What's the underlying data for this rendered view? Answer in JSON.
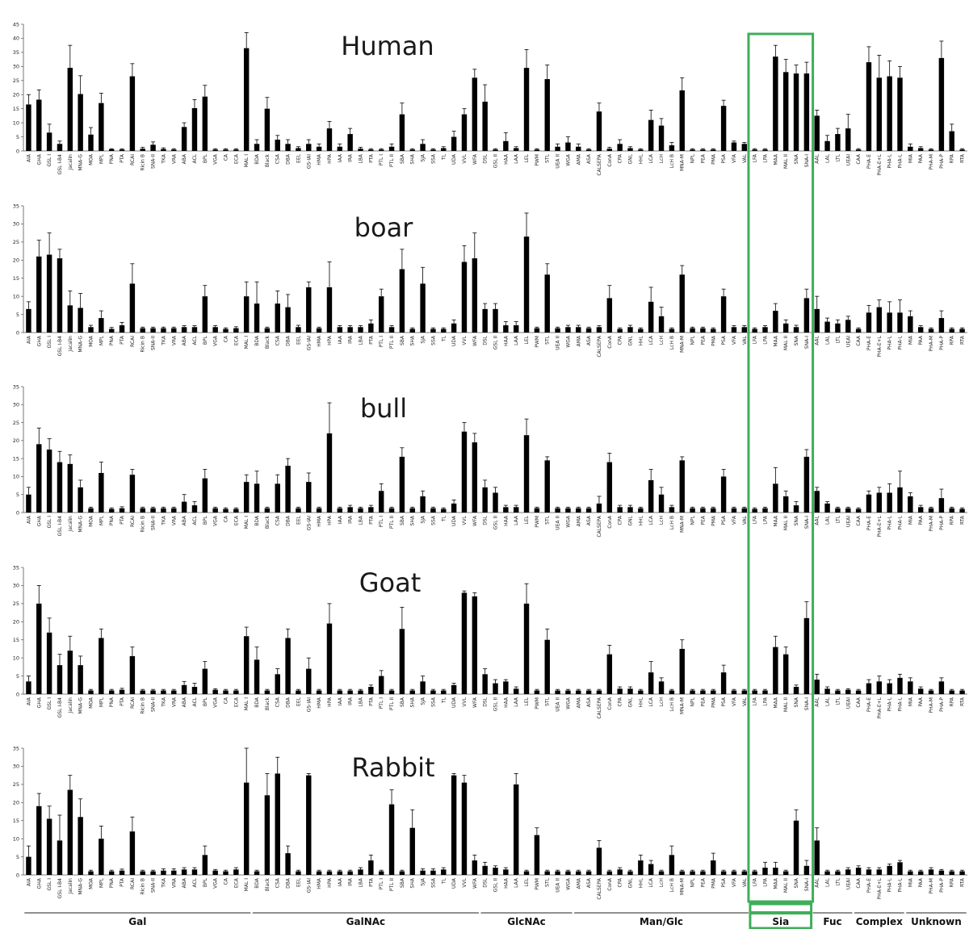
{
  "chart_data": {
    "type": "bar",
    "ylim": [
      0,
      45
    ],
    "accent_color": "#3fae5a",
    "bar_color": "#000000",
    "highlight_group": "Sia",
    "lectins": [
      "AIA",
      "GHA",
      "GSL I",
      "GSL I-B4",
      "Jacalin",
      "MNA-G",
      "MOA",
      "MPL",
      "PNA",
      "PTA",
      "RCAI",
      "Ricin B",
      "SNA-II",
      "TKA",
      "VRA",
      "ABA",
      "ACL",
      "BPL",
      "VGA",
      "CA",
      "ECA",
      "MAL I",
      "BDA",
      "Black",
      "CSA",
      "DBA",
      "EEL",
      "GS-IAI",
      "HMA",
      "HPA",
      "IAA",
      "IRA",
      "LBA",
      "PTA",
      "PTL I",
      "PTL II",
      "SBA",
      "SHA",
      "SJA",
      "SSA",
      "TL",
      "UDA",
      "VVL",
      "WFA",
      "DSL",
      "GSL II",
      "HAA",
      "LAA",
      "LEL",
      "PWM",
      "STL",
      "UEA II",
      "WGA",
      "AMA",
      "ASA",
      "CALSEPA",
      "ConA",
      "CPA",
      "GNL",
      "HHL",
      "LCA",
      "LcH",
      "LcH B",
      "MNA-M",
      "NPL",
      "PEA",
      "PMA",
      "PSA",
      "VFA",
      "VAL",
      "LFA",
      "LPA",
      "MAA",
      "MAL II",
      "SNA",
      "SNA-I",
      "AAL",
      "LAL",
      "LTL",
      "UEAI",
      "CAA",
      "PHA-E",
      "PHA-E+L",
      "PHA-L",
      "PHA-L",
      "MIA",
      "PAA",
      "PHA-M",
      "PHA-P",
      "RPA",
      "RTA"
    ],
    "groups": [
      {
        "name": "Gal",
        "start": 0,
        "end": 21
      },
      {
        "name": "GalNAc",
        "start": 22,
        "end": 43
      },
      {
        "name": "GlcNAc",
        "start": 44,
        "end": 52
      },
      {
        "name": "Man/Glc",
        "start": 53,
        "end": 69
      },
      {
        "name": "Sia",
        "start": 70,
        "end": 75
      },
      {
        "name": "Fuc",
        "start": 76,
        "end": 79
      },
      {
        "name": "Complex",
        "start": 80,
        "end": 84
      },
      {
        "name": "Unknown",
        "start": 85,
        "end": 90
      }
    ],
    "panels": [
      {
        "title": "Human",
        "ylim": [
          0,
          45
        ],
        "yticks": [
          0,
          5,
          10,
          15,
          20,
          25,
          30,
          35,
          40,
          45
        ],
        "values": [
          16.5,
          18.2,
          6.5,
          2.5,
          29.5,
          20.2,
          5.8,
          17,
          0.6,
          0.5,
          26.5,
          0.8,
          2.2,
          0.7,
          0.5,
          8.5,
          15.2,
          19.3,
          0.5,
          0.5,
          0.5,
          36.5,
          2.5,
          15,
          4,
          2.5,
          1,
          2.5,
          1.5,
          8,
          1.5,
          6,
          0.8,
          0.5,
          0.5,
          1.5,
          13,
          0.5,
          2.5,
          0.5,
          1,
          5,
          13,
          26,
          17.5,
          0.5,
          3.5,
          1,
          29.5,
          0.5,
          25.5,
          1.5,
          3,
          1.5,
          0.5,
          14,
          0.8,
          2.5,
          1,
          0.5,
          11,
          9,
          2,
          21.5,
          0.5,
          0.5,
          0.5,
          16,
          3,
          2.5,
          0.5,
          0.5,
          33.5,
          28,
          27.5,
          27.5,
          12.5,
          3.5,
          6,
          8,
          0.5,
          31.5,
          26,
          26.5,
          26,
          1.5,
          1,
          0.5,
          33,
          7,
          0.5
        ],
        "errors": [
          3.5,
          3.5,
          3,
          1,
          8,
          6.5,
          2.5,
          3.5,
          0.2,
          0.2,
          4.5,
          0.5,
          1,
          0.4,
          0.3,
          1.5,
          3,
          4,
          0.3,
          0.3,
          0.3,
          5.5,
          1.5,
          4,
          1.5,
          1.5,
          0.5,
          1.5,
          1,
          2.5,
          1,
          2,
          0.5,
          0.3,
          0.3,
          1,
          4,
          0.3,
          1.5,
          0.3,
          0.5,
          2,
          2,
          3,
          6,
          0.3,
          3,
          0.5,
          6.5,
          0.3,
          5,
          1,
          2,
          1,
          0.3,
          3,
          0.5,
          1.5,
          0.5,
          0.3,
          3.5,
          2.5,
          1,
          4.5,
          0.3,
          0.3,
          0.3,
          2,
          0.5,
          0.5,
          0.3,
          0.3,
          4,
          4.5,
          3,
          4,
          2,
          2,
          2,
          5,
          0.3,
          5.5,
          8,
          5.5,
          4,
          1,
          0.5,
          0.3,
          6,
          2.5,
          0.3
        ]
      },
      {
        "title": "boar",
        "ylim": [
          0,
          35
        ],
        "yticks": [
          0,
          5,
          10,
          15,
          20,
          25,
          30,
          35
        ],
        "values": [
          6.5,
          21,
          21.5,
          20.5,
          7.5,
          6.8,
          1.5,
          4,
          1,
          2,
          13.5,
          1.2,
          1.2,
          1.2,
          1.2,
          1.5,
          1.5,
          10,
          1.5,
          1,
          1.2,
          10,
          8,
          1.2,
          8,
          7,
          1.5,
          12.5,
          1.2,
          12.5,
          1.5,
          1.5,
          1.5,
          2.5,
          10,
          1.5,
          17.5,
          1,
          13.5,
          1,
          1,
          2.5,
          19.5,
          20.5,
          6.5,
          6.5,
          2,
          2,
          26.5,
          1.2,
          16,
          1.2,
          1.5,
          1.5,
          1.2,
          1.5,
          9.5,
          1,
          1.5,
          1,
          8.5,
          4.5,
          1,
          16,
          1.2,
          1.2,
          1,
          10,
          1.5,
          1.5,
          1,
          1.5,
          6,
          2.5,
          1.5,
          9.5,
          6.5,
          3,
          2.5,
          3.5,
          1,
          5.5,
          7,
          5.5,
          5.5,
          4.5,
          1.5,
          1,
          4,
          1,
          1
        ],
        "errors": [
          2,
          4.5,
          6,
          2.5,
          4,
          4,
          0.5,
          2,
          0.4,
          0.8,
          5.5,
          0.3,
          0.3,
          0.3,
          0.3,
          0.4,
          0.4,
          3,
          0.4,
          0.3,
          0.4,
          4,
          6,
          0.3,
          3.5,
          3.5,
          0.5,
          1.5,
          0.3,
          7,
          0.4,
          0.4,
          0.4,
          1,
          2,
          0.4,
          5.5,
          0.3,
          4.5,
          0.3,
          0.3,
          1,
          4.5,
          7,
          1.5,
          1.5,
          1,
          1,
          6.5,
          0.3,
          3,
          0.3,
          0.5,
          0.5,
          0.3,
          0.4,
          3.5,
          0.3,
          0.5,
          0.3,
          4,
          2.5,
          0.3,
          2.5,
          0.3,
          0.3,
          0.3,
          2,
          0.4,
          0.4,
          0.3,
          0.4,
          2,
          1,
          0.5,
          2.5,
          3.5,
          1,
          1,
          1,
          0.3,
          2,
          2,
          3,
          3.5,
          1.5,
          0.4,
          0.3,
          2,
          0.3,
          0.3
        ]
      },
      {
        "title": "bull",
        "ylim": [
          0,
          35
        ],
        "yticks": [
          0,
          5,
          10,
          15,
          20,
          25,
          30,
          35
        ],
        "values": [
          5,
          19,
          17.5,
          14,
          13.5,
          7,
          1.2,
          11,
          1,
          1.2,
          10.5,
          1.2,
          1.2,
          1.2,
          1.2,
          3,
          2,
          9.5,
          1.2,
          1,
          1,
          8.5,
          8,
          1.2,
          8,
          13,
          1.2,
          8.5,
          1.2,
          22,
          1.2,
          1.5,
          1.2,
          1.5,
          6,
          1.2,
          15.5,
          1.2,
          4.5,
          1.2,
          1,
          2.5,
          22.5,
          19.5,
          7,
          5.5,
          1.5,
          1.5,
          21.5,
          1.2,
          14.5,
          1.2,
          1.2,
          1.2,
          1.2,
          2.5,
          14,
          1.5,
          1.5,
          1.2,
          9,
          5,
          1.5,
          14.5,
          1.2,
          1.2,
          1.2,
          10,
          1.2,
          1.2,
          1,
          1.2,
          8,
          4.5,
          2,
          15.5,
          6,
          2.5,
          1.2,
          1.2,
          1,
          5,
          5.5,
          5.5,
          7,
          4.5,
          1.5,
          1.2,
          4,
          1.2,
          1
        ],
        "errors": [
          2,
          4.5,
          3,
          3,
          2.5,
          2,
          0.3,
          3,
          0.3,
          0.4,
          1.5,
          0.3,
          0.3,
          0.3,
          0.3,
          2,
          1,
          2.5,
          0.3,
          0.3,
          0.3,
          2,
          3.5,
          0.3,
          2.5,
          2,
          0.3,
          2.5,
          0.3,
          8.5,
          0.3,
          0.5,
          0.3,
          0.5,
          2,
          0.3,
          2.5,
          0.3,
          1.5,
          0.3,
          0.3,
          1,
          2.5,
          2.5,
          2,
          1.5,
          0.5,
          0.5,
          4.5,
          0.3,
          1,
          0.3,
          0.3,
          0.3,
          0.3,
          2,
          2.5,
          0.5,
          0.5,
          0.3,
          3,
          2,
          0.5,
          1,
          0.3,
          0.3,
          0.3,
          2,
          0.3,
          0.3,
          0.3,
          0.3,
          4.5,
          1.5,
          1,
          2,
          1,
          0.5,
          0.3,
          0.3,
          0.3,
          1,
          1.5,
          2.5,
          4.5,
          1,
          0.5,
          0.3,
          2.5,
          0.3,
          0.3
        ]
      },
      {
        "title": "Goat",
        "ylim": [
          0,
          35
        ],
        "yticks": [
          0,
          5,
          10,
          15,
          20,
          25,
          30,
          35
        ],
        "values": [
          3.5,
          25,
          17,
          8,
          12,
          8,
          1,
          15.5,
          1,
          1.2,
          10.5,
          1,
          1,
          1,
          1,
          2.5,
          2,
          7,
          1.2,
          1,
          1,
          16,
          9.5,
          1,
          5.5,
          15.5,
          1,
          7,
          1,
          19.5,
          1,
          1,
          1,
          2,
          5,
          1,
          18,
          1,
          3.5,
          1,
          1,
          2.5,
          28,
          27,
          5.5,
          3,
          3.5,
          1.5,
          25,
          1,
          15,
          1,
          1,
          1,
          1,
          1,
          11,
          1.5,
          1.5,
          1,
          6,
          3.5,
          1,
          12.5,
          1,
          1,
          1,
          6,
          1,
          1,
          1,
          1,
          13,
          11,
          2,
          21,
          4,
          1.5,
          1,
          1.2,
          1,
          3,
          3.5,
          3,
          4.5,
          3.5,
          1.5,
          1,
          3.5,
          1,
          1
        ],
        "errors": [
          1.5,
          5,
          4,
          3,
          4,
          2.5,
          0.3,
          2.5,
          0.3,
          0.4,
          2.5,
          0.3,
          0.3,
          0.3,
          0.3,
          1,
          1,
          2,
          0.3,
          0.3,
          0.3,
          2.5,
          3.5,
          0.3,
          1.5,
          2.5,
          0.3,
          3,
          0.3,
          5.5,
          0.3,
          0.3,
          0.3,
          0.5,
          1.5,
          0.3,
          6,
          0.3,
          1.5,
          0.3,
          0.3,
          0.5,
          0.5,
          1,
          1.5,
          1,
          0.5,
          0.5,
          5.5,
          0.3,
          3,
          0.3,
          0.3,
          0.3,
          0.3,
          0.3,
          2.5,
          0.5,
          0.5,
          0.3,
          3,
          1,
          0.3,
          2.5,
          0.3,
          0.3,
          0.3,
          2,
          0.3,
          0.3,
          0.3,
          0.3,
          3,
          2,
          0.5,
          4.5,
          1.5,
          0.5,
          0.3,
          0.3,
          0.3,
          1,
          1.5,
          1,
          1,
          1,
          0.5,
          0.3,
          1,
          0.3,
          0.3
        ]
      },
      {
        "title": "Rabbit",
        "ylim": [
          0,
          35
        ],
        "yticks": [
          0,
          5,
          10,
          15,
          20,
          25,
          30,
          35
        ],
        "values": [
          5,
          19,
          15.5,
          9.5,
          23.5,
          16,
          1,
          10,
          1,
          1.2,
          12,
          1,
          1,
          1.2,
          1.2,
          1.5,
          1.5,
          5.5,
          1.2,
          1,
          1.5,
          25.5,
          1,
          22,
          28,
          6,
          1,
          27.5,
          1,
          1,
          1,
          1,
          1.5,
          4,
          1,
          19.5,
          1,
          13,
          1.2,
          1.2,
          1.5,
          27.5,
          25.5,
          4,
          2.5,
          2,
          1.5,
          25,
          1,
          11,
          1,
          1,
          1,
          1,
          1,
          7.5,
          1,
          1.5,
          1,
          4,
          3,
          1,
          5.5,
          1,
          1,
          1,
          4,
          1,
          1,
          1,
          1,
          2,
          2,
          1,
          15,
          2.5,
          9.5,
          1,
          1,
          1.5,
          2,
          1.5,
          1.5,
          2.5,
          3.5,
          1,
          1,
          1.5,
          1.2,
          1,
          1
        ],
        "errors": [
          3,
          3.5,
          3.5,
          7,
          4,
          5,
          0.3,
          3.5,
          0.3,
          0.4,
          4,
          0.3,
          0.3,
          0.5,
          0.5,
          0.5,
          0.5,
          2.5,
          0.3,
          0.3,
          0.5,
          9.5,
          0.3,
          6,
          4.5,
          2,
          0.3,
          0.5,
          0.3,
          0.3,
          0.3,
          0.3,
          0.5,
          1.5,
          0.3,
          4,
          0.3,
          5,
          0.5,
          0.5,
          0.5,
          0.5,
          2,
          1.5,
          1,
          0.5,
          0.5,
          3,
          0.3,
          2,
          0.3,
          0.3,
          0.3,
          0.3,
          0.3,
          2,
          0.3,
          0.5,
          0.3,
          1.5,
          1,
          0.3,
          2.5,
          0.3,
          0.3,
          0.3,
          2,
          0.3,
          0.3,
          0.3,
          0.3,
          1.5,
          1.5,
          0.3,
          3,
          1.5,
          3.5,
          0.3,
          0.3,
          0.5,
          0.5,
          0.5,
          0.5,
          0.5,
          0.5,
          0.3,
          0.3,
          0.5,
          0.3,
          0.3,
          0.3
        ]
      }
    ]
  }
}
